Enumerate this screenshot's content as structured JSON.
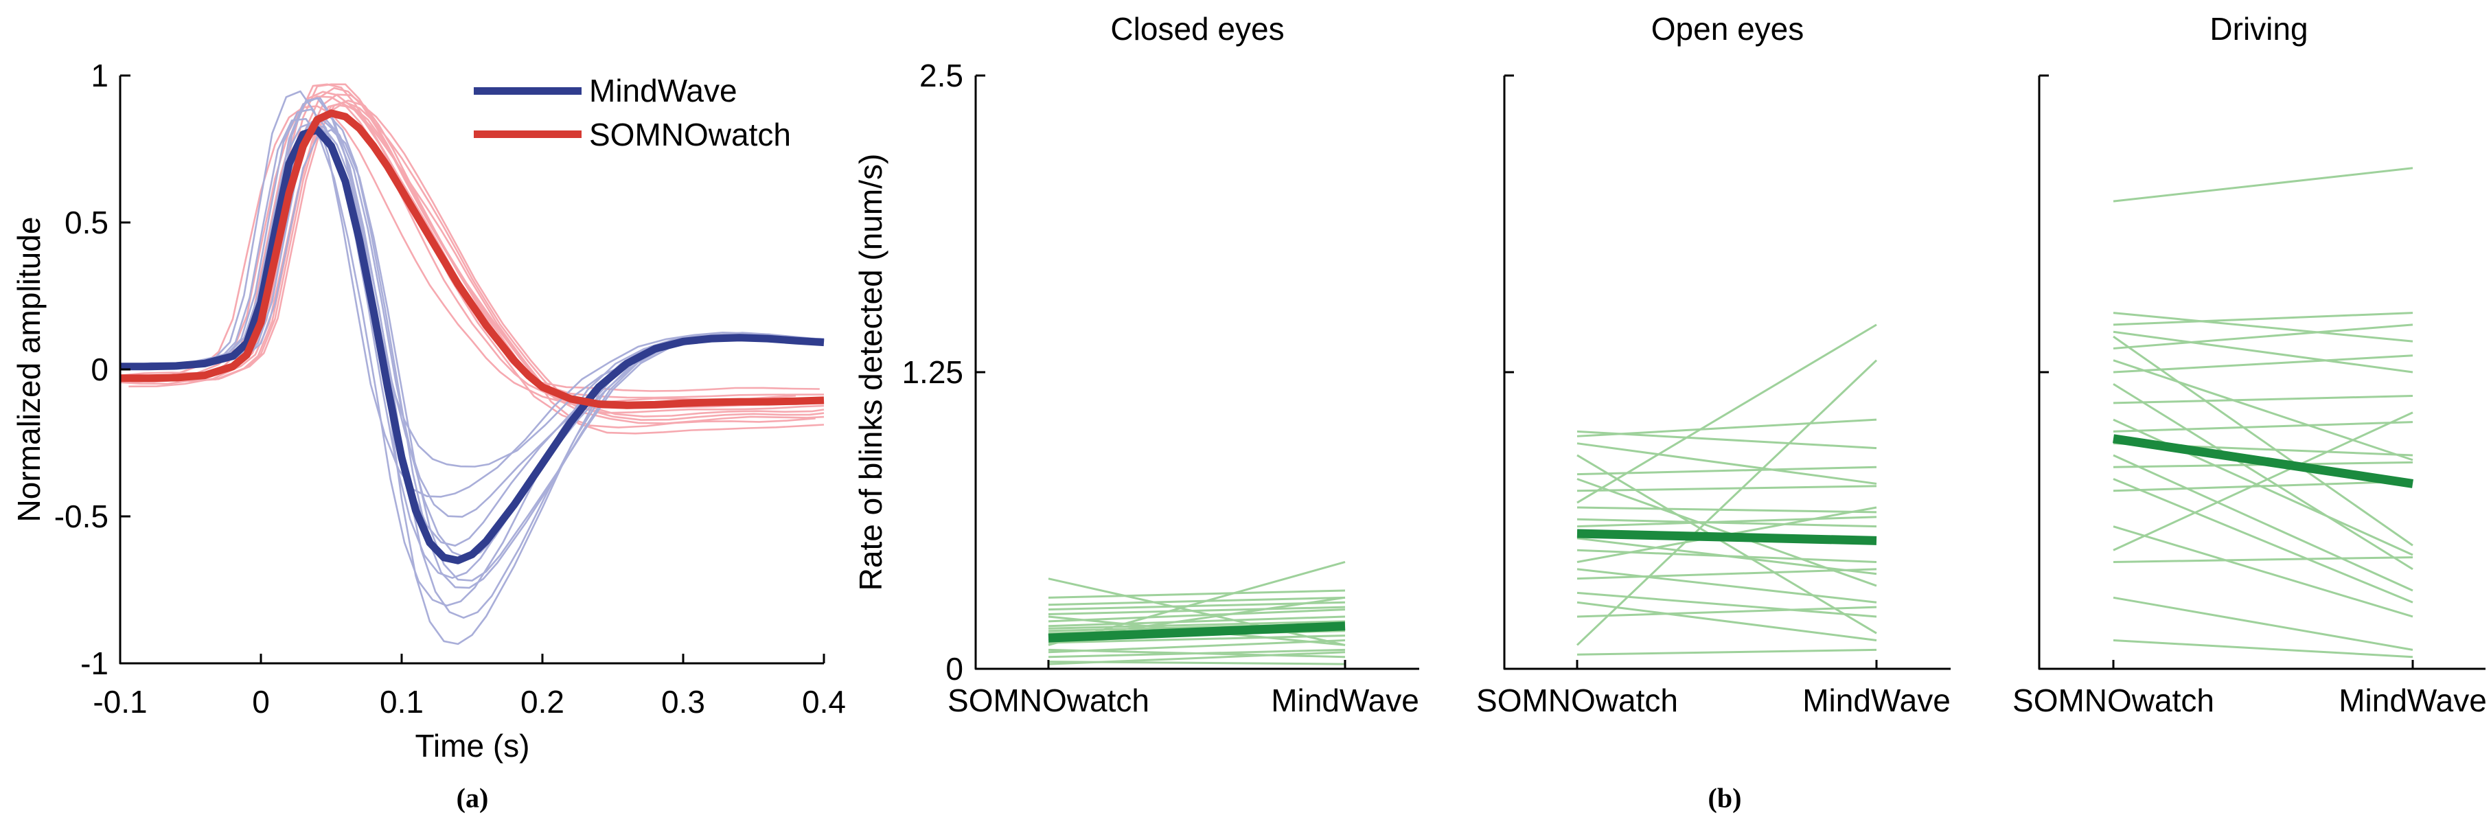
{
  "captions": {
    "a": "(a)",
    "b": "(b)"
  },
  "panel_b_ylabel": "Rate of blinks detected (num/s)",
  "colors": {
    "mindwave_mean": "#303d8e",
    "mindwave_trace": "#a9aed9",
    "somnowatch_mean": "#d63a32",
    "somnowatch_trace": "#f6a9b0",
    "green_mean": "#1b8a3e",
    "green_trace": "#9ed19b",
    "axis": "#000000"
  },
  "chart_data": [
    {
      "type": "line",
      "title": "",
      "xlabel": "Time (s)",
      "ylabel": "Normalized amplitude",
      "xlim": [
        -0.1,
        0.4
      ],
      "ylim": [
        -1,
        1
      ],
      "xticks": [
        "-0.1",
        "0",
        "0.1",
        "0.2",
        "0.3",
        "0.4"
      ],
      "xtick_values": [
        -0.1,
        0,
        0.1,
        0.2,
        0.3,
        0.4
      ],
      "yticks": [
        "1",
        "0.5",
        "0",
        "-0.5",
        "-1"
      ],
      "ytick_values": [
        1,
        0.5,
        0,
        -0.5,
        -1
      ],
      "legend": [
        {
          "label": "MindWave",
          "color": "#303d8e"
        },
        {
          "label": "SOMNOwatch",
          "color": "#d63a32"
        }
      ],
      "series": [
        {
          "name": "MindWave mean",
          "color": "#303d8e",
          "width": 11,
          "points": [
            [
              -0.1,
              0.01
            ],
            [
              -0.08,
              0.01
            ],
            [
              -0.06,
              0.012
            ],
            [
              -0.04,
              0.02
            ],
            [
              -0.02,
              0.045
            ],
            [
              -0.01,
              0.09
            ],
            [
              0.0,
              0.23
            ],
            [
              0.01,
              0.47
            ],
            [
              0.02,
              0.7
            ],
            [
              0.03,
              0.8
            ],
            [
              0.04,
              0.815
            ],
            [
              0.05,
              0.76
            ],
            [
              0.06,
              0.64
            ],
            [
              0.07,
              0.44
            ],
            [
              0.08,
              0.2
            ],
            [
              0.09,
              -0.06
            ],
            [
              0.1,
              -0.3
            ],
            [
              0.11,
              -0.48
            ],
            [
              0.12,
              -0.59
            ],
            [
              0.13,
              -0.64
            ],
            [
              0.14,
              -0.65
            ],
            [
              0.15,
              -0.63
            ],
            [
              0.16,
              -0.585
            ],
            [
              0.18,
              -0.46
            ],
            [
              0.2,
              -0.32
            ],
            [
              0.22,
              -0.18
            ],
            [
              0.24,
              -0.06
            ],
            [
              0.26,
              0.02
            ],
            [
              0.28,
              0.07
            ],
            [
              0.3,
              0.095
            ],
            [
              0.32,
              0.105
            ],
            [
              0.34,
              0.108
            ],
            [
              0.36,
              0.105
            ],
            [
              0.38,
              0.098
            ],
            [
              0.4,
              0.092
            ]
          ]
        },
        {
          "name": "SOMNOwatch mean",
          "color": "#d63a32",
          "width": 11,
          "points": [
            [
              -0.1,
              -0.03
            ],
            [
              -0.08,
              -0.03
            ],
            [
              -0.06,
              -0.028
            ],
            [
              -0.04,
              -0.02
            ],
            [
              -0.02,
              0.01
            ],
            [
              -0.01,
              0.05
            ],
            [
              0.0,
              0.16
            ],
            [
              0.01,
              0.38
            ],
            [
              0.02,
              0.6
            ],
            [
              0.03,
              0.76
            ],
            [
              0.04,
              0.85
            ],
            [
              0.05,
              0.872
            ],
            [
              0.06,
              0.86
            ],
            [
              0.07,
              0.82
            ],
            [
              0.08,
              0.76
            ],
            [
              0.09,
              0.69
            ],
            [
              0.1,
              0.61
            ],
            [
              0.11,
              0.53
            ],
            [
              0.12,
              0.45
            ],
            [
              0.13,
              0.37
            ],
            [
              0.14,
              0.29
            ],
            [
              0.15,
              0.22
            ],
            [
              0.16,
              0.15
            ],
            [
              0.17,
              0.09
            ],
            [
              0.18,
              0.03
            ],
            [
              0.19,
              -0.02
            ],
            [
              0.2,
              -0.06
            ],
            [
              0.22,
              -0.1
            ],
            [
              0.24,
              -0.118
            ],
            [
              0.26,
              -0.122
            ],
            [
              0.28,
              -0.12
            ],
            [
              0.3,
              -0.115
            ],
            [
              0.32,
              -0.112
            ],
            [
              0.34,
              -0.11
            ],
            [
              0.36,
              -0.11
            ],
            [
              0.38,
              -0.108
            ],
            [
              0.4,
              -0.105
            ]
          ]
        }
      ],
      "individual_traces": {
        "somnowatch": {
          "color": "#f6a9b0",
          "width": 2.6,
          "variants": [
            [
              1.1,
              1.6,
              -0.006,
              0.012,
              1
            ],
            [
              1.07,
              1.2,
              0.004,
              0.016,
              2
            ],
            [
              1.12,
              0.8,
              0.0,
              0.01,
              3
            ],
            [
              1.05,
              1.4,
              0.01,
              0.014,
              4
            ],
            [
              1.09,
              1.0,
              -0.01,
              0.02,
              5
            ],
            [
              1.02,
              1.8,
              0.006,
              0.012,
              6
            ],
            [
              1.11,
              0.6,
              -0.003,
              0.018,
              7
            ],
            [
              1.06,
              1.3,
              0.012,
              0.01,
              8
            ],
            [
              1.04,
              0.9,
              -0.02,
              0.024,
              9
            ],
            [
              1.08,
              1.1,
              0.002,
              0.014,
              10
            ],
            [
              1.03,
              1.5,
              0.008,
              0.02,
              11
            ]
          ]
        },
        "mindwave": {
          "color": "#a9aed9",
          "width": 2.6,
          "variants": [
            [
              1.1,
              1.08,
              -0.004,
              0.012,
              1
            ],
            [
              1.06,
              0.75,
              0.003,
              0.02,
              2
            ],
            [
              1.12,
              1.45,
              0.0,
              0.01,
              3
            ],
            [
              1.04,
              1.25,
              -0.008,
              0.018,
              4
            ],
            [
              1.08,
              0.95,
              0.006,
              0.025,
              5
            ],
            [
              1.0,
              1.1,
              0.01,
              0.015,
              6
            ],
            [
              1.13,
              0.7,
              -0.012,
              0.022,
              7
            ],
            [
              1.02,
              1.3,
              0.004,
              0.012,
              8
            ],
            [
              1.07,
              0.88,
              -0.002,
              0.028,
              9
            ],
            [
              1.05,
              1.15,
              0.008,
              0.016,
              10
            ],
            [
              1.1,
              0.55,
              0.002,
              0.03,
              11
            ]
          ]
        }
      }
    },
    {
      "type": "slope",
      "title": "Closed eyes",
      "ylabel": "Rate of blinks detected (num/s)",
      "categories": [
        "SOMNOwatch",
        "MindWave"
      ],
      "ylim": [
        0,
        2.5
      ],
      "yticks": [
        "2.5",
        "1.25",
        "0"
      ],
      "ytick_values": [
        2.5,
        1.25,
        0
      ],
      "show_ytick_labels": true,
      "mean": [
        0.13,
        0.18
      ],
      "mean_color": "#1b8a3e",
      "line_color": "#9ed19b",
      "pairs": [
        [
          0.38,
          0.1
        ],
        [
          0.3,
          0.33
        ],
        [
          0.27,
          0.3
        ],
        [
          0.25,
          0.28
        ],
        [
          0.23,
          0.26
        ],
        [
          0.22,
          0.1
        ],
        [
          0.2,
          0.25
        ],
        [
          0.18,
          0.22
        ],
        [
          0.17,
          0.2
        ],
        [
          0.16,
          0.19
        ],
        [
          0.15,
          0.18
        ],
        [
          0.13,
          0.16
        ],
        [
          0.12,
          0.3
        ],
        [
          0.11,
          0.14
        ],
        [
          0.1,
          0.45
        ],
        [
          0.08,
          0.05
        ],
        [
          0.07,
          0.12
        ],
        [
          0.05,
          0.08
        ],
        [
          0.03,
          0.02
        ],
        [
          0.02,
          0.07
        ]
      ]
    },
    {
      "type": "slope",
      "title": "Open eyes",
      "categories": [
        "SOMNOwatch",
        "MindWave"
      ],
      "ylim": [
        0,
        2.5
      ],
      "yticks": [
        "2.5",
        "1.25",
        "0"
      ],
      "ytick_values": [
        2.5,
        1.25,
        0
      ],
      "show_ytick_labels": false,
      "mean": [
        0.57,
        0.54
      ],
      "mean_color": "#1b8a3e",
      "line_color": "#9ed19b",
      "pairs": [
        [
          1.0,
          0.93
        ],
        [
          0.98,
          1.05
        ],
        [
          0.95,
          0.78
        ],
        [
          0.9,
          0.15
        ],
        [
          0.82,
          0.85
        ],
        [
          0.8,
          0.35
        ],
        [
          0.75,
          0.77
        ],
        [
          0.7,
          1.45
        ],
        [
          0.68,
          0.66
        ],
        [
          0.63,
          0.6
        ],
        [
          0.6,
          0.64
        ],
        [
          0.58,
          0.55
        ],
        [
          0.55,
          0.4
        ],
        [
          0.5,
          0.45
        ],
        [
          0.45,
          0.68
        ],
        [
          0.42,
          0.28
        ],
        [
          0.38,
          0.42
        ],
        [
          0.32,
          0.22
        ],
        [
          0.28,
          0.12
        ],
        [
          0.22,
          0.26
        ],
        [
          0.1,
          1.3
        ],
        [
          0.06,
          0.08
        ]
      ]
    },
    {
      "type": "slope",
      "title": "Driving",
      "categories": [
        "SOMNOwatch",
        "MindWave"
      ],
      "ylim": [
        0,
        2.5
      ],
      "yticks": [
        "2.5",
        "1.25",
        "0"
      ],
      "ytick_values": [
        2.5,
        1.25,
        0
      ],
      "show_ytick_labels": false,
      "mean": [
        0.97,
        0.78
      ],
      "mean_color": "#1b8a3e",
      "line_color": "#9ed19b",
      "pairs": [
        [
          1.97,
          2.11
        ],
        [
          1.5,
          1.38
        ],
        [
          1.45,
          1.5
        ],
        [
          1.42,
          1.25
        ],
        [
          1.4,
          0.52
        ],
        [
          1.35,
          1.45
        ],
        [
          1.3,
          0.88
        ],
        [
          1.25,
          1.32
        ],
        [
          1.2,
          0.42
        ],
        [
          1.12,
          1.15
        ],
        [
          1.05,
          0.48
        ],
        [
          1.0,
          1.04
        ],
        [
          0.95,
          0.9
        ],
        [
          0.9,
          0.33
        ],
        [
          0.85,
          0.87
        ],
        [
          0.8,
          0.28
        ],
        [
          0.75,
          0.79
        ],
        [
          0.6,
          0.22
        ],
        [
          0.5,
          1.08
        ],
        [
          0.45,
          0.47
        ],
        [
          0.3,
          0.08
        ],
        [
          0.12,
          0.05
        ]
      ]
    }
  ]
}
